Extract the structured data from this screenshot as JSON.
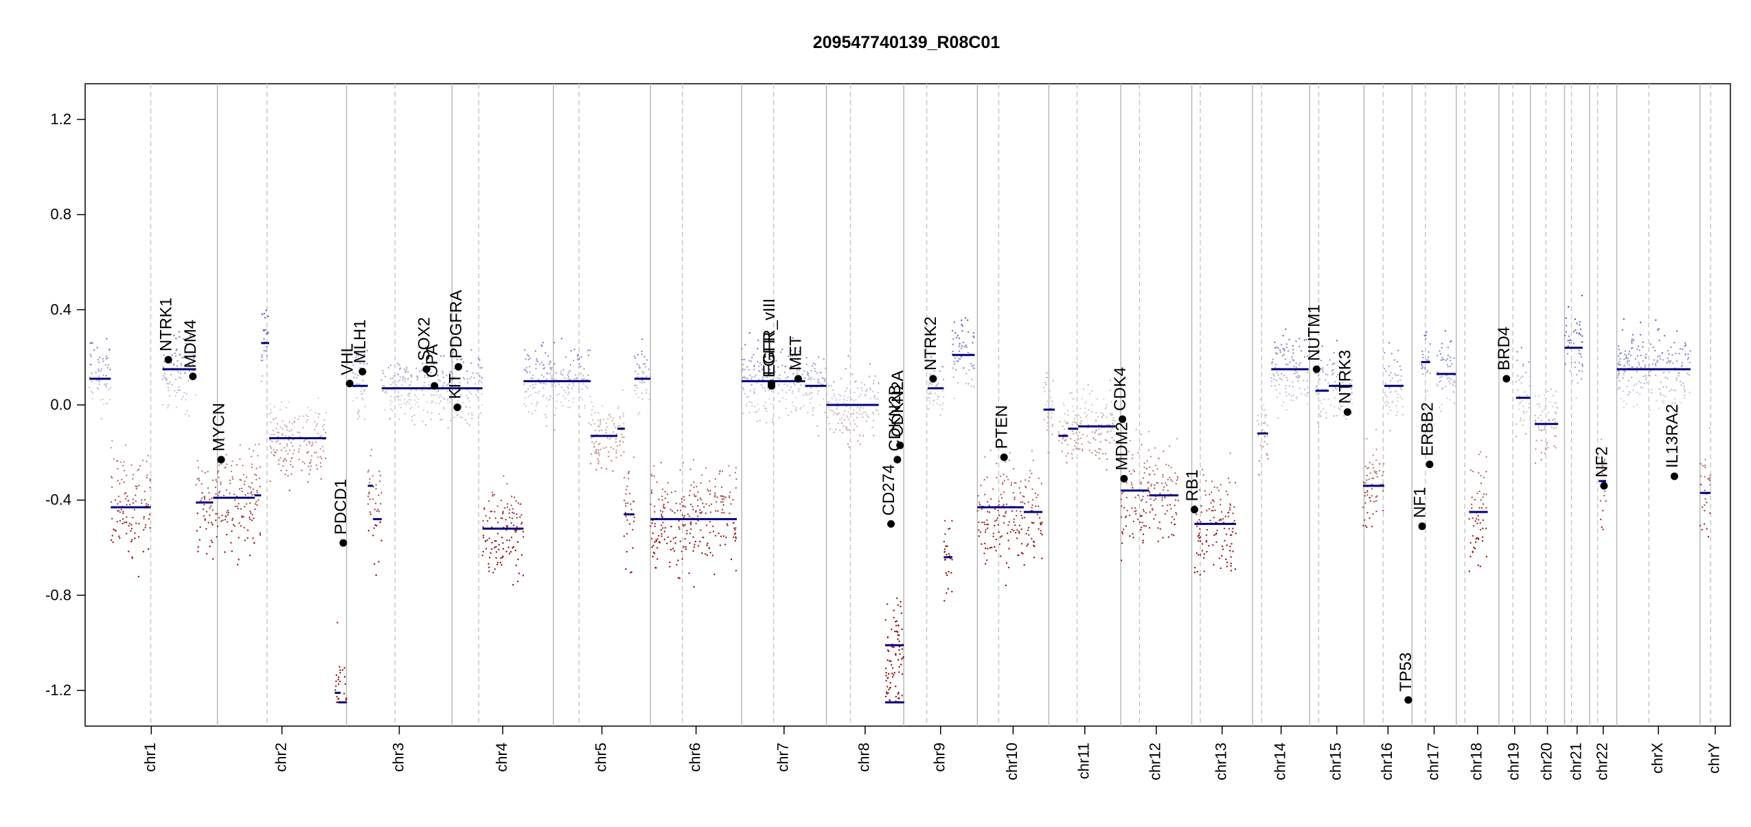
{
  "chart_data": {
    "type": "scatter",
    "title": "209547740139_R08C01",
    "xlabel": "",
    "ylabel": "",
    "ylim": [
      -1.35,
      1.35
    ],
    "y_ticks": [
      "-1.2",
      "-0.8",
      "-0.4",
      "0.0",
      "0.4",
      "0.8",
      "1.2"
    ],
    "y_tick_values": [
      -1.2,
      -0.8,
      -0.4,
      0.0,
      0.4,
      0.8,
      1.2
    ],
    "chromosomes": [
      {
        "name": "chr1",
        "start": 0,
        "end": 248,
        "centromere": 123
      },
      {
        "name": "chr2",
        "start": 248,
        "end": 490,
        "centromere": 341
      },
      {
        "name": "chr3",
        "start": 490,
        "end": 688,
        "centromere": 581
      },
      {
        "name": "chr4",
        "start": 688,
        "end": 878,
        "centromere": 738
      },
      {
        "name": "chr5",
        "start": 878,
        "end": 1060,
        "centromere": 926
      },
      {
        "name": "chr6",
        "start": 1060,
        "end": 1231,
        "centromere": 1120
      },
      {
        "name": "chr7",
        "start": 1231,
        "end": 1390,
        "centromere": 1291
      },
      {
        "name": "chr8",
        "start": 1390,
        "end": 1535,
        "centromere": 1435
      },
      {
        "name": "chr9",
        "start": 1535,
        "end": 1673,
        "centromere": 1578
      },
      {
        "name": "chr10",
        "start": 1673,
        "end": 1807,
        "centromere": 1713
      },
      {
        "name": "chr11",
        "start": 1807,
        "end": 1942,
        "centromere": 1860
      },
      {
        "name": "chr12",
        "start": 1942,
        "end": 2075,
        "centromere": 1977
      },
      {
        "name": "chr13",
        "start": 2075,
        "end": 2189,
        "centromere": 2091
      },
      {
        "name": "chr14",
        "start": 2189,
        "end": 2296,
        "centromere": 2206
      },
      {
        "name": "chr15",
        "start": 2296,
        "end": 2398,
        "centromere": 2313
      },
      {
        "name": "chr16",
        "start": 2398,
        "end": 2488,
        "centromere": 2434
      },
      {
        "name": "chr17",
        "start": 2488,
        "end": 2571,
        "centromere": 2513
      },
      {
        "name": "chr18",
        "start": 2571,
        "end": 2651,
        "centromere": 2587
      },
      {
        "name": "chr19",
        "start": 2651,
        "end": 2710,
        "centromere": 2677
      },
      {
        "name": "chr20",
        "start": 2710,
        "end": 2774,
        "centromere": 2739
      },
      {
        "name": "chr21",
        "start": 2774,
        "end": 2821,
        "centromere": 2787
      },
      {
        "name": "chr22",
        "start": 2821,
        "end": 2872,
        "centromere": 2836
      },
      {
        "name": "chrX",
        "start": 2872,
        "end": 3028,
        "centromere": 2932
      },
      {
        "name": "chrY",
        "start": 3028,
        "end": 3085,
        "centromere": 3048
      }
    ],
    "xlim": [
      0,
      3085
    ],
    "segments": [
      {
        "x0": 8,
        "x1": 48,
        "y": 0.11
      },
      {
        "x0": 48,
        "x1": 123,
        "y": -0.43
      },
      {
        "x0": 145,
        "x1": 208,
        "y": 0.15
      },
      {
        "x0": 208,
        "x1": 240,
        "y": -0.41
      },
      {
        "x0": 240,
        "x1": 318,
        "y": -0.39
      },
      {
        "x0": 318,
        "x1": 330,
        "y": -0.38
      },
      {
        "x0": 330,
        "x1": 345,
        "y": 0.26
      },
      {
        "x0": 345,
        "x1": 452,
        "y": -0.14
      },
      {
        "x0": 468,
        "x1": 479,
        "y": -1.21
      },
      {
        "x0": 475,
        "x1": 490,
        "y": -1.25
      },
      {
        "x0": 500,
        "x1": 530,
        "y": 0.08
      },
      {
        "x0": 530,
        "x1": 540,
        "y": -0.34
      },
      {
        "x0": 540,
        "x1": 556,
        "y": -0.48
      },
      {
        "x0": 556,
        "x1": 688,
        "y": 0.07
      },
      {
        "x0": 688,
        "x1": 745,
        "y": 0.07
      },
      {
        "x0": 745,
        "x1": 822,
        "y": -0.52
      },
      {
        "x0": 822,
        "x1": 948,
        "y": 0.1
      },
      {
        "x0": 948,
        "x1": 998,
        "y": -0.13
      },
      {
        "x0": 998,
        "x1": 1012,
        "y": -0.1
      },
      {
        "x0": 1010,
        "x1": 1030,
        "y": -0.46
      },
      {
        "x0": 1030,
        "x1": 1060,
        "y": 0.11
      },
      {
        "x0": 1060,
        "x1": 1222,
        "y": -0.48
      },
      {
        "x0": 1231,
        "x1": 1350,
        "y": 0.1
      },
      {
        "x0": 1350,
        "x1": 1390,
        "y": 0.08
      },
      {
        "x0": 1390,
        "x1": 1488,
        "y": 0.0
      },
      {
        "x0": 1500,
        "x1": 1535,
        "y": -1.01
      },
      {
        "x0": 1500,
        "x1": 1535,
        "y": -1.25
      },
      {
        "x0": 1580,
        "x1": 1610,
        "y": 0.07
      },
      {
        "x0": 1610,
        "x1": 1626,
        "y": -0.64
      },
      {
        "x0": 1626,
        "x1": 1668,
        "y": 0.21
      },
      {
        "x0": 1673,
        "x1": 1760,
        "y": -0.43
      },
      {
        "x0": 1760,
        "x1": 1795,
        "y": -0.45
      },
      {
        "x0": 1797,
        "x1": 1818,
        "y": -0.02
      },
      {
        "x0": 1825,
        "x1": 1843,
        "y": -0.13
      },
      {
        "x0": 1843,
        "x1": 1862,
        "y": -0.1
      },
      {
        "x0": 1862,
        "x1": 1932,
        "y": -0.09
      },
      {
        "x0": 1942,
        "x1": 1995,
        "y": -0.36
      },
      {
        "x0": 1995,
        "x1": 2050,
        "y": -0.38
      },
      {
        "x0": 2080,
        "x1": 2158,
        "y": -0.5
      },
      {
        "x0": 2198,
        "x1": 2218,
        "y": -0.12
      },
      {
        "x0": 2224,
        "x1": 2294,
        "y": 0.15
      },
      {
        "x0": 2307,
        "x1": 2332,
        "y": 0.06
      },
      {
        "x0": 2332,
        "x1": 2376,
        "y": 0.08
      },
      {
        "x0": 2396,
        "x1": 2436,
        "y": -0.34
      },
      {
        "x0": 2436,
        "x1": 2472,
        "y": 0.08
      },
      {
        "x0": 2505,
        "x1": 2522,
        "y": 0.18
      },
      {
        "x0": 2534,
        "x1": 2570,
        "y": 0.13
      },
      {
        "x0": 2595,
        "x1": 2630,
        "y": -0.45
      },
      {
        "x0": 2683,
        "x1": 2710,
        "y": 0.03
      },
      {
        "x0": 2718,
        "x1": 2762,
        "y": -0.08
      },
      {
        "x0": 2774,
        "x1": 2808,
        "y": 0.24
      },
      {
        "x0": 2838,
        "x1": 2852,
        "y": -0.32
      },
      {
        "x0": 2872,
        "x1": 3010,
        "y": 0.15
      },
      {
        "x0": 3028,
        "x1": 3048,
        "y": -0.37
      }
    ],
    "genes": [
      {
        "name": "NTRK1",
        "x": 156,
        "y": 0.19
      },
      {
        "name": "MDM4",
        "x": 202,
        "y": 0.12
      },
      {
        "name": "MYCN",
        "x": 255,
        "y": -0.23
      },
      {
        "name": "PDCD1",
        "x": 484,
        "y": -0.58
      },
      {
        "name": "VHL",
        "x": 496,
        "y": 0.09
      },
      {
        "name": "MLH1",
        "x": 520,
        "y": 0.14
      },
      {
        "name": "SOX2",
        "x": 640,
        "y": 0.15
      },
      {
        "name": "OPA",
        "x": 655,
        "y": 0.08
      },
      {
        "name": "PDGFRA",
        "x": 700,
        "y": 0.16
      },
      {
        "name": "KIT",
        "x": 698,
        "y": -0.01
      },
      {
        "name": "EGFR",
        "x": 1287,
        "y": 0.08
      },
      {
        "name": "EGFR_vIII",
        "x": 1287,
        "y": 0.09
      },
      {
        "name": "MET",
        "x": 1337,
        "y": 0.11
      },
      {
        "name": "CD274",
        "x": 1511,
        "y": -0.5
      },
      {
        "name": "CDKN2A",
        "x": 1528,
        "y": -0.17
      },
      {
        "name": "CDKN2B",
        "x": 1523,
        "y": -0.23
      },
      {
        "name": "NTRK2",
        "x": 1590,
        "y": 0.11
      },
      {
        "name": "PTEN",
        "x": 1723,
        "y": -0.22
      },
      {
        "name": "CDK4",
        "x": 1945,
        "y": -0.06
      },
      {
        "name": "MDM2",
        "x": 1948,
        "y": -0.31
      },
      {
        "name": "RB1",
        "x": 2080,
        "y": -0.44
      },
      {
        "name": "NUTM1",
        "x": 2309,
        "y": 0.15
      },
      {
        "name": "NTRK3",
        "x": 2367,
        "y": -0.03
      },
      {
        "name": "TP53",
        "x": 2481,
        "y": -1.24
      },
      {
        "name": "NF1",
        "x": 2507,
        "y": -0.51
      },
      {
        "name": "ERBB2",
        "x": 2521,
        "y": -0.25
      },
      {
        "name": "BRD4",
        "x": 2665,
        "y": 0.11
      },
      {
        "name": "NF2",
        "x": 2848,
        "y": -0.34
      },
      {
        "name": "IL13RA2",
        "x": 2980,
        "y": -0.3
      }
    ]
  }
}
